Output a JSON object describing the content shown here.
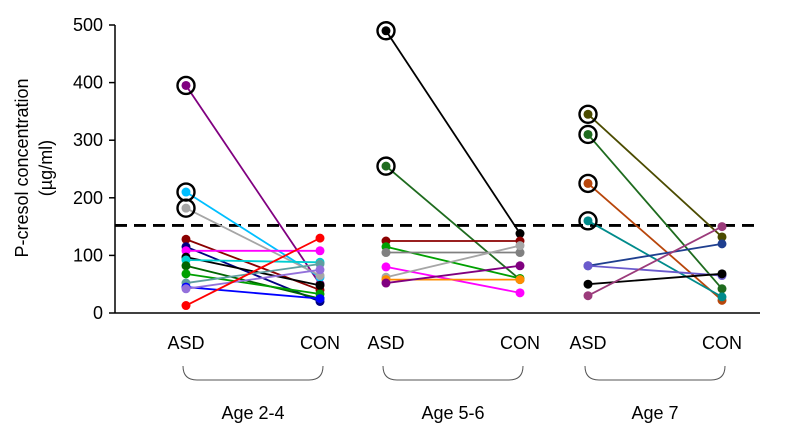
{
  "chart_data": {
    "type": "line",
    "title": "",
    "ylabel_lines": [
      "P-cresol concentration",
      "(µg/ml)"
    ],
    "ylim": [
      0,
      500
    ],
    "yticks": [
      0,
      100,
      200,
      300,
      400,
      500
    ],
    "threshold": 152,
    "threshold_style": "dashed",
    "groups": [
      {
        "label": "Age 2-4",
        "x_labels": [
          "ASD",
          "CON"
        ],
        "pairs": [
          {
            "asd": 395,
            "con": 50,
            "color": "#800080",
            "circled": true
          },
          {
            "asd": 210,
            "con": 62,
            "color": "#00BFFF",
            "circled": true
          },
          {
            "asd": 182,
            "con": 65,
            "color": "#A6A6A6",
            "circled": true
          },
          {
            "asd": 128,
            "con": 40,
            "color": "#8B0000"
          },
          {
            "asd": 115,
            "con": 20,
            "color": "#000080"
          },
          {
            "asd": 108,
            "con": 108,
            "color": "#FF00FF"
          },
          {
            "asd": 97,
            "con": 48,
            "color": "#000000"
          },
          {
            "asd": 92,
            "con": 88,
            "color": "#00CED1"
          },
          {
            "asd": 82,
            "con": 25,
            "color": "#006400"
          },
          {
            "asd": 68,
            "con": 33,
            "color": "#00A000"
          },
          {
            "asd": 52,
            "con": 85,
            "color": "#5F9EA0"
          },
          {
            "asd": 45,
            "con": 25,
            "color": "#0000FF"
          },
          {
            "asd": 42,
            "con": 75,
            "color": "#9370DB"
          },
          {
            "asd": 13,
            "con": 130,
            "color": "#FF0000"
          }
        ]
      },
      {
        "label": "Age 5-6",
        "x_labels": [
          "ASD",
          "CON"
        ],
        "pairs": [
          {
            "asd": 490,
            "con": 138,
            "color": "#000000",
            "circled": true
          },
          {
            "asd": 255,
            "con": 58,
            "color": "#1E6B1E",
            "circled": true
          },
          {
            "asd": 125,
            "con": 125,
            "color": "#8B0000"
          },
          {
            "asd": 115,
            "con": 60,
            "color": "#00A000"
          },
          {
            "asd": 105,
            "con": 105,
            "color": "#808080"
          },
          {
            "asd": 80,
            "con": 35,
            "color": "#FF00FF"
          },
          {
            "asd": 62,
            "con": 117,
            "color": "#A6A6A6"
          },
          {
            "asd": 58,
            "con": 58,
            "color": "#FF8C00"
          },
          {
            "asd": 52,
            "con": 82,
            "color": "#800080"
          }
        ]
      },
      {
        "label": "Age 7",
        "x_labels": [
          "ASD",
          "CON"
        ],
        "pairs": [
          {
            "asd": 345,
            "con": 132,
            "color": "#4B4B00",
            "circled": true
          },
          {
            "asd": 310,
            "con": 42,
            "color": "#1E6B1E",
            "circled": true
          },
          {
            "asd": 225,
            "con": 22,
            "color": "#B8460B",
            "circled": true
          },
          {
            "asd": 160,
            "con": 28,
            "color": "#008B8B",
            "circled": true
          },
          {
            "asd": 82,
            "con": 120,
            "color": "#1F3F8F"
          },
          {
            "asd": 82,
            "con": 65,
            "color": "#6A5ACD"
          },
          {
            "asd": 50,
            "con": 68,
            "color": "#000000"
          },
          {
            "asd": 30,
            "con": 150,
            "color": "#9B3B7B"
          }
        ]
      }
    ]
  }
}
